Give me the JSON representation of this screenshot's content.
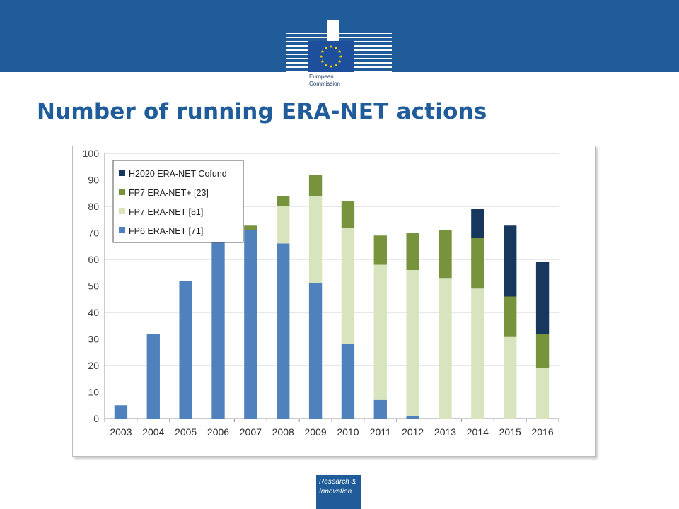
{
  "header": {
    "logo_line1": "European",
    "logo_line2": "Commission"
  },
  "page_title": "Number of running ERA-NET actions",
  "footer": {
    "line1": "Research &",
    "line2": "Innovation"
  },
  "colors": {
    "header_band": "#1f5c99",
    "title": "#1f5c99",
    "eu_flag_blue": "#1e4f9c",
    "eu_star": "#ffd200"
  },
  "chart_data": {
    "type": "bar",
    "stacked": true,
    "title": "",
    "xlabel": "",
    "ylabel": "",
    "ylim": [
      0,
      100
    ],
    "yticks": [
      0,
      10,
      20,
      30,
      40,
      50,
      60,
      70,
      80,
      90,
      100
    ],
    "grid": true,
    "legend_position": "top-left",
    "categories": [
      "2003",
      "2004",
      "2005",
      "2006",
      "2007",
      "2008",
      "2009",
      "2010",
      "2011",
      "2012",
      "2013",
      "2014",
      "2015",
      "2016"
    ],
    "series": [
      {
        "name": "FP6 ERA-NET [71]",
        "color": "#4f81bd",
        "values": [
          5,
          32,
          52,
          67,
          71,
          66,
          51,
          28,
          7,
          1,
          0,
          0,
          0,
          0
        ]
      },
      {
        "name": "FP7 ERA-NET [81]",
        "color": "#d7e4bd",
        "values": [
          0,
          0,
          0,
          0,
          0,
          14,
          33,
          44,
          51,
          55,
          53,
          49,
          31,
          19
        ]
      },
      {
        "name": "FP7 ERA-NET+ [23]",
        "color": "#77933c",
        "values": [
          0,
          0,
          0,
          0,
          2,
          4,
          8,
          10,
          11,
          14,
          18,
          19,
          15,
          13
        ]
      },
      {
        "name": "H2020 ERA-NET Cofund",
        "color": "#17375e",
        "values": [
          0,
          0,
          0,
          0,
          0,
          0,
          0,
          0,
          0,
          0,
          0,
          11,
          27,
          27
        ]
      }
    ]
  }
}
